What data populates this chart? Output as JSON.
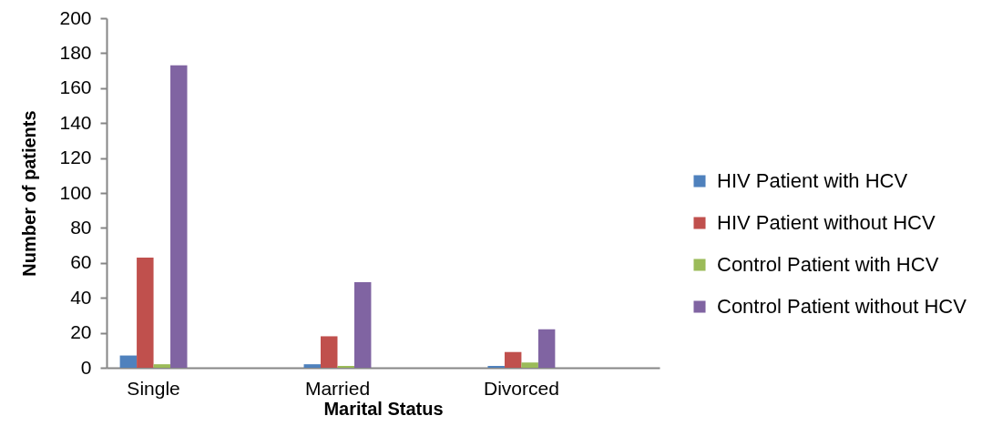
{
  "chart_data": {
    "type": "bar",
    "xlabel": "Marital Status",
    "ylabel": "Number of patients",
    "categories": [
      "Single",
      "Married",
      "Divorced"
    ],
    "series": [
      {
        "name": "HIV Patient with HCV",
        "color": "#4f81bd",
        "values": [
          7,
          2,
          1
        ]
      },
      {
        "name": "HIV Patient without HCV",
        "color": "#c0504d",
        "values": [
          63,
          18,
          9
        ]
      },
      {
        "name": "Control Patient with HCV",
        "color": "#9bbb59",
        "values": [
          2,
          1,
          3
        ]
      },
      {
        "name": "Control Patient without HCV",
        "color": "#8064a2",
        "values": [
          173,
          49,
          22
        ]
      }
    ],
    "ylim": [
      0,
      200
    ],
    "yticks": [
      0,
      20,
      40,
      60,
      80,
      100,
      120,
      140,
      160,
      180,
      200
    ],
    "grid": false,
    "legend": "right"
  }
}
